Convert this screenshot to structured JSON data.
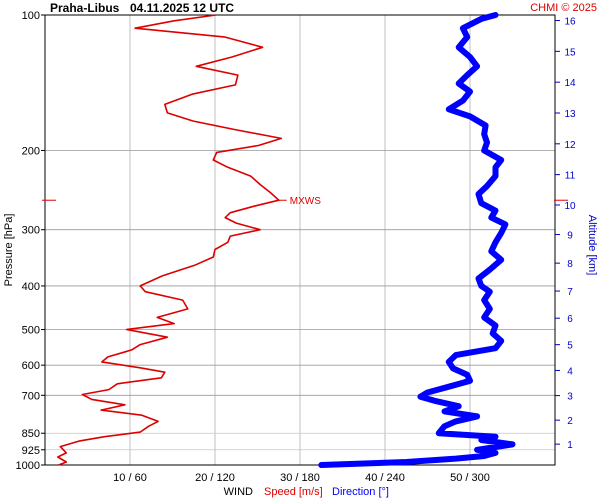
{
  "header": {
    "station": "Praha-Libus",
    "datetime": "04.11.2025 12 UTC",
    "copyright": "CHMI © 2025"
  },
  "chart_data": {
    "type": "line",
    "y_axis_left": {
      "label": "Pressure [hPa]",
      "scale": "log",
      "range": [
        1000,
        100
      ],
      "ticks": [
        100,
        200,
        300,
        400,
        500,
        600,
        700,
        850,
        925,
        1000
      ]
    },
    "y_axis_right": {
      "label": "Altitude [km]",
      "ticks": [
        1,
        2,
        3,
        4,
        5,
        6,
        7,
        8,
        9,
        10,
        11,
        12,
        13,
        14,
        15,
        16
      ]
    },
    "x_axis": {
      "label_prefix": "WIND",
      "label_speed": "Speed [m/s]",
      "label_direction": "Direction [°]",
      "range_speed": [
        0,
        60
      ],
      "range_direction": [
        0,
        360
      ],
      "ticks": [
        "10 / 60",
        "20 / 120",
        "30 / 180",
        "40 / 240",
        "50 / 300"
      ],
      "grid": true
    },
    "annotation": {
      "label": "MXWS",
      "pressure": 258,
      "speed_ms": 27.5
    },
    "colors": {
      "speed": "#dd0000",
      "direction": "#0000ff",
      "grid": "#b0b0b0",
      "mxws": "#dd0000",
      "altitude": "#0000cc"
    },
    "series": [
      {
        "name": "Speed [m/s]",
        "unit": "m/s",
        "points": [
          {
            "p": 1000,
            "v": 1.6
          },
          {
            "p": 985,
            "v": 2.5
          },
          {
            "p": 960,
            "v": 1.5
          },
          {
            "p": 940,
            "v": 2.5
          },
          {
            "p": 910,
            "v": 1.8
          },
          {
            "p": 885,
            "v": 4.0
          },
          {
            "p": 865,
            "v": 7.0
          },
          {
            "p": 845,
            "v": 11.2
          },
          {
            "p": 820,
            "v": 12.2
          },
          {
            "p": 800,
            "v": 13.3
          },
          {
            "p": 775,
            "v": 11.4
          },
          {
            "p": 755,
            "v": 6.6
          },
          {
            "p": 735,
            "v": 9.4
          },
          {
            "p": 715,
            "v": 5.5
          },
          {
            "p": 697,
            "v": 4.4
          },
          {
            "p": 680,
            "v": 7.5
          },
          {
            "p": 660,
            "v": 8.5
          },
          {
            "p": 640,
            "v": 13.7
          },
          {
            "p": 622,
            "v": 14.1
          },
          {
            "p": 608,
            "v": 11.2
          },
          {
            "p": 590,
            "v": 6.7
          },
          {
            "p": 575,
            "v": 7.4
          },
          {
            "p": 555,
            "v": 10.2
          },
          {
            "p": 540,
            "v": 11.2
          },
          {
            "p": 520,
            "v": 14.4
          },
          {
            "p": 500,
            "v": 9.6
          },
          {
            "p": 485,
            "v": 15.2
          },
          {
            "p": 470,
            "v": 13.2
          },
          {
            "p": 450,
            "v": 16.8
          },
          {
            "p": 430,
            "v": 16.2
          },
          {
            "p": 412,
            "v": 11.8
          },
          {
            "p": 400,
            "v": 11.2
          },
          {
            "p": 380,
            "v": 13.8
          },
          {
            "p": 360,
            "v": 17.6
          },
          {
            "p": 345,
            "v": 19.8
          },
          {
            "p": 332,
            "v": 20.0
          },
          {
            "p": 320,
            "v": 21.5
          },
          {
            "p": 310,
            "v": 21.8
          },
          {
            "p": 300,
            "v": 25.3
          },
          {
            "p": 290,
            "v": 22.5
          },
          {
            "p": 282,
            "v": 21.2
          },
          {
            "p": 275,
            "v": 21.8
          },
          {
            "p": 266,
            "v": 24.6
          },
          {
            "p": 258,
            "v": 27.5
          },
          {
            "p": 248,
            "v": 26.5
          },
          {
            "p": 238,
            "v": 25.3
          },
          {
            "p": 228,
            "v": 24.2
          },
          {
            "p": 218,
            "v": 21.5
          },
          {
            "p": 210,
            "v": 19.8
          },
          {
            "p": 202,
            "v": 20.2
          },
          {
            "p": 195,
            "v": 25.1
          },
          {
            "p": 188,
            "v": 27.8
          },
          {
            "p": 180,
            "v": 22.5
          },
          {
            "p": 172,
            "v": 17.4
          },
          {
            "p": 165,
            "v": 14.4
          },
          {
            "p": 158,
            "v": 14.1
          },
          {
            "p": 150,
            "v": 17.3
          },
          {
            "p": 143,
            "v": 22.4
          },
          {
            "p": 136,
            "v": 22.7
          },
          {
            "p": 130,
            "v": 17.8
          },
          {
            "p": 124,
            "v": 22.0
          },
          {
            "p": 118,
            "v": 25.6
          },
          {
            "p": 112,
            "v": 21.2
          },
          {
            "p": 107,
            "v": 10.6
          },
          {
            "p": 103,
            "v": 15.2
          },
          {
            "p": 100,
            "v": 20.1
          }
        ]
      },
      {
        "name": "Direction [°]",
        "unit": "°",
        "points": [
          {
            "p": 1000,
            "v": 195
          },
          {
            "p": 985,
            "v": 255
          },
          {
            "p": 968,
            "v": 290
          },
          {
            "p": 955,
            "v": 310
          },
          {
            "p": 940,
            "v": 318
          },
          {
            "p": 925,
            "v": 305
          },
          {
            "p": 900,
            "v": 330
          },
          {
            "p": 880,
            "v": 308
          },
          {
            "p": 865,
            "v": 318
          },
          {
            "p": 850,
            "v": 278
          },
          {
            "p": 820,
            "v": 282
          },
          {
            "p": 800,
            "v": 290
          },
          {
            "p": 780,
            "v": 305
          },
          {
            "p": 760,
            "v": 282
          },
          {
            "p": 740,
            "v": 292
          },
          {
            "p": 720,
            "v": 275
          },
          {
            "p": 705,
            "v": 265
          },
          {
            "p": 690,
            "v": 270
          },
          {
            "p": 670,
            "v": 285
          },
          {
            "p": 650,
            "v": 300
          },
          {
            "p": 630,
            "v": 298
          },
          {
            "p": 610,
            "v": 288
          },
          {
            "p": 590,
            "v": 285
          },
          {
            "p": 570,
            "v": 290
          },
          {
            "p": 550,
            "v": 318
          },
          {
            "p": 530,
            "v": 322
          },
          {
            "p": 510,
            "v": 316
          },
          {
            "p": 490,
            "v": 318
          },
          {
            "p": 470,
            "v": 310
          },
          {
            "p": 450,
            "v": 314
          },
          {
            "p": 430,
            "v": 310
          },
          {
            "p": 412,
            "v": 314
          },
          {
            "p": 400,
            "v": 308
          },
          {
            "p": 385,
            "v": 306
          },
          {
            "p": 368,
            "v": 314
          },
          {
            "p": 350,
            "v": 322
          },
          {
            "p": 335,
            "v": 315
          },
          {
            "p": 320,
            "v": 318
          },
          {
            "p": 305,
            "v": 322
          },
          {
            "p": 292,
            "v": 325
          },
          {
            "p": 282,
            "v": 315
          },
          {
            "p": 272,
            "v": 318
          },
          {
            "p": 262,
            "v": 308
          },
          {
            "p": 250,
            "v": 306
          },
          {
            "p": 240,
            "v": 312
          },
          {
            "p": 228,
            "v": 318
          },
          {
            "p": 218,
            "v": 318
          },
          {
            "p": 210,
            "v": 322
          },
          {
            "p": 200,
            "v": 310
          },
          {
            "p": 192,
            "v": 312
          },
          {
            "p": 184,
            "v": 310
          },
          {
            "p": 176,
            "v": 311
          },
          {
            "p": 168,
            "v": 300
          },
          {
            "p": 162,
            "v": 285
          },
          {
            "p": 155,
            "v": 295
          },
          {
            "p": 148,
            "v": 300
          },
          {
            "p": 142,
            "v": 292
          },
          {
            "p": 136,
            "v": 298
          },
          {
            "p": 130,
            "v": 305
          },
          {
            "p": 124,
            "v": 300
          },
          {
            "p": 118,
            "v": 292
          },
          {
            "p": 112,
            "v": 298
          },
          {
            "p": 107,
            "v": 295
          },
          {
            "p": 102,
            "v": 308
          },
          {
            "p": 100,
            "v": 318
          }
        ]
      }
    ]
  }
}
